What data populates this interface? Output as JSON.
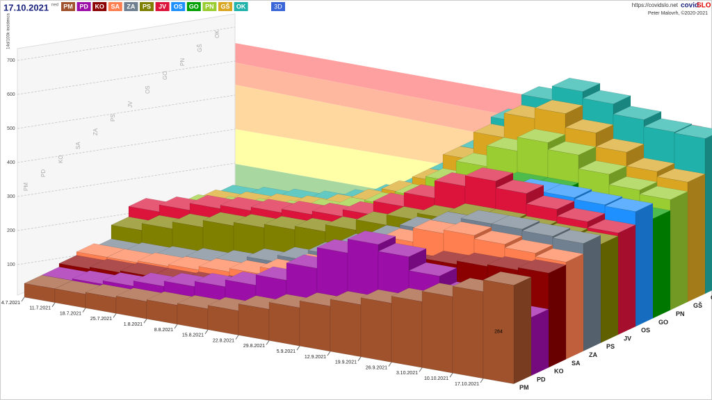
{
  "chart_data": {
    "type": "bar3d",
    "title": "17.10.2021",
    "subtitle": "ned",
    "mode_button": "3D",
    "source_url": "https://covidslo.net",
    "brand": [
      "covid",
      "SLO"
    ],
    "credit": "Peter Malovrh, ©2020-2021",
    "y_label": "14d/100k incidenca",
    "x": [
      "4.7.2021",
      "11.7.2021",
      "18.7.2021",
      "25.7.2021",
      "1.8.2021",
      "8.8.2021",
      "15.8.2021",
      "22.8.2021",
      "29.8.2021",
      "5.9.2021",
      "12.9.2021",
      "19.9.2021",
      "26.9.2021",
      "3.10.2021",
      "10.10.2021",
      "17.10.2021"
    ],
    "ylim": [
      0,
      800
    ],
    "yticks": [
      100,
      200,
      300,
      400,
      500,
      600,
      700
    ],
    "series": [
      {
        "name": "PM",
        "color": "#a0522d",
        "values": [
          40,
          40,
          45,
          50,
          55,
          60,
          70,
          90,
          110,
          130,
          150,
          170,
          190,
          220,
          250,
          284
        ]
      },
      {
        "name": "PD",
        "color": "#9b0ea8",
        "values": [
          40,
          45,
          55,
          70,
          85,
          100,
          120,
          150,
          200,
          260,
          300,
          280,
          240,
          200,
          180,
          168
        ]
      },
      {
        "name": "KO",
        "color": "#8b0000",
        "values": [
          50,
          55,
          60,
          60,
          65,
          70,
          80,
          100,
          130,
          160,
          200,
          230,
          250,
          260,
          265,
          272
        ]
      },
      {
        "name": "SA",
        "color": "#ff7f50",
        "values": [
          60,
          60,
          65,
          70,
          80,
          90,
          110,
          140,
          180,
          220,
          260,
          300,
          310,
          300,
          290,
          280
        ]
      },
      {
        "name": "ZA",
        "color": "#708090",
        "values": [
          50,
          55,
          60,
          70,
          80,
          100,
          120,
          150,
          190,
          230,
          270,
          300,
          320,
          320,
          315,
          310
        ]
      },
      {
        "name": "PS",
        "color": "#808000",
        "values": [
          90,
          110,
          130,
          150,
          160,
          170,
          180,
          200,
          230,
          260,
          280,
          300,
          300,
          295,
          290,
          284
        ]
      },
      {
        "name": "JV",
        "color": "#dc143c",
        "values": [
          120,
          140,
          160,
          170,
          180,
          190,
          200,
          220,
          260,
          300,
          350,
          380,
          360,
          330,
          310,
          293
        ]
      },
      {
        "name": "OS",
        "color": "#1e90ff",
        "values": [
          80,
          90,
          100,
          110,
          120,
          130,
          150,
          170,
          200,
          240,
          280,
          320,
          340,
          340,
          335,
          331
        ]
      },
      {
        "name": "GO",
        "color": "#00a000",
        "values": [
          70,
          80,
          90,
          100,
          110,
          120,
          140,
          160,
          200,
          240,
          280,
          320,
          320,
          300,
          290,
          287
        ]
      },
      {
        "name": "PN",
        "color": "#9acd32",
        "values": [
          60,
          70,
          80,
          90,
          110,
          130,
          160,
          200,
          260,
          320,
          380,
          420,
          400,
          360,
          330,
          318
        ]
      },
      {
        "name": "GŠ",
        "color": "#daa520",
        "values": [
          50,
          60,
          70,
          80,
          100,
          130,
          170,
          220,
          300,
          380,
          450,
          480,
          440,
          400,
          360,
          345
        ]
      },
      {
        "name": "OK",
        "color": "#20b2aa",
        "values": [
          40,
          50,
          60,
          70,
          90,
          120,
          160,
          220,
          300,
          400,
          480,
          520,
          500,
          470,
          450,
          447
        ]
      }
    ]
  }
}
